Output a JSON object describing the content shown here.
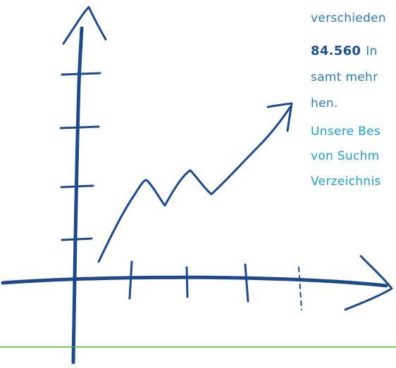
{
  "text": {
    "lines": [
      {
        "parts": [
          "verschieden"
        ]
      },
      {
        "parts": [
          "84.560",
          "In"
        ]
      },
      {
        "parts": [
          "samt mehr"
        ]
      },
      {
        "parts": [
          "hen."
        ]
      },
      {
        "parts": [
          "Unsere Bes"
        ]
      },
      {
        "parts": [
          "von Suchm"
        ]
      },
      {
        "parts": [
          "Verzeichnis"
        ]
      }
    ]
  }
}
